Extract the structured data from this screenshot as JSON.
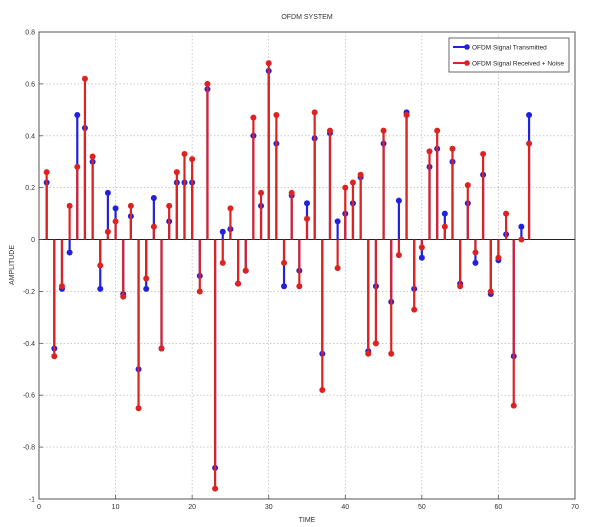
{
  "chart_data": {
    "type": "stem",
    "title": "OFDM SYSTEM",
    "xlabel": "TIME",
    "ylabel": "AMPLITUDE",
    "xlim": [
      0,
      70
    ],
    "ylim": [
      -1,
      0.8
    ],
    "xticks": [
      0,
      10,
      20,
      30,
      40,
      50,
      60,
      70
    ],
    "yticks": [
      -1,
      -0.8,
      -0.6,
      -0.4,
      -0.2,
      0,
      0.2,
      0.4,
      0.6,
      0.8
    ],
    "xtick_labels": [
      "0",
      "10",
      "20",
      "30",
      "40",
      "50",
      "60",
      "70"
    ],
    "ytick_labels": [
      "-1",
      "-0.8",
      "-0.6",
      "-0.4",
      "-0.2",
      "0",
      "0.2",
      "0.4",
      "0.6",
      "0.8"
    ],
    "grid": true,
    "legend_position": "top-right",
    "series": [
      {
        "name": "OFDM Signal Transmitted",
        "color": "#2222dd",
        "x": [
          1,
          2,
          3,
          4,
          5,
          6,
          7,
          8,
          9,
          10,
          11,
          12,
          13,
          14,
          15,
          16,
          17,
          18,
          19,
          20,
          21,
          22,
          23,
          24,
          25,
          26,
          27,
          28,
          29,
          30,
          31,
          32,
          33,
          34,
          35,
          36,
          37,
          38,
          39,
          40,
          41,
          42,
          43,
          44,
          45,
          46,
          47,
          48,
          49,
          50,
          51,
          52,
          53,
          54,
          55,
          56,
          57,
          58,
          59,
          60,
          61,
          62,
          63,
          64
        ],
        "y": [
          0.22,
          -0.42,
          -0.19,
          -0.05,
          0.48,
          0.43,
          0.3,
          -0.19,
          0.18,
          0.12,
          -0.21,
          0.09,
          -0.5,
          -0.19,
          0.16,
          -0.42,
          0.07,
          0.22,
          0.22,
          0.22,
          -0.14,
          0.58,
          -0.88,
          0.03,
          0.04,
          -0.17,
          -0.12,
          0.4,
          0.13,
          0.65,
          0.37,
          -0.18,
          0.17,
          -0.12,
          0.14,
          0.39,
          -0.44,
          0.41,
          0.07,
          0.1,
          0.14,
          0.24,
          -0.43,
          -0.18,
          0.37,
          -0.24,
          0.15,
          0.49,
          -0.19,
          -0.07,
          0.28,
          0.35,
          0.1,
          0.3,
          -0.17,
          0.14,
          -0.09,
          0.25,
          -0.21,
          -0.08,
          0.02,
          -0.45,
          0.05,
          0.48
        ]
      },
      {
        "name": "OFDM Signal Received + Noise",
        "color": "#dd2222",
        "x": [
          1,
          2,
          3,
          4,
          5,
          6,
          7,
          8,
          9,
          10,
          11,
          12,
          13,
          14,
          15,
          16,
          17,
          18,
          19,
          20,
          21,
          22,
          23,
          24,
          25,
          26,
          27,
          28,
          29,
          30,
          31,
          32,
          33,
          34,
          35,
          36,
          37,
          38,
          39,
          40,
          41,
          42,
          43,
          44,
          45,
          46,
          47,
          48,
          49,
          50,
          51,
          52,
          53,
          54,
          55,
          56,
          57,
          58,
          59,
          60,
          61,
          62,
          63,
          64
        ],
        "y": [
          0.26,
          -0.45,
          -0.18,
          0.13,
          0.28,
          0.62,
          0.32,
          -0.1,
          0.03,
          0.07,
          -0.22,
          0.13,
          -0.65,
          -0.15,
          0.05,
          -0.42,
          0.13,
          0.26,
          0.33,
          0.31,
          -0.2,
          0.6,
          -0.96,
          -0.09,
          0.12,
          -0.17,
          -0.12,
          0.47,
          0.18,
          0.68,
          0.48,
          -0.09,
          0.18,
          -0.18,
          0.08,
          0.49,
          -0.58,
          0.42,
          -0.11,
          0.2,
          0.22,
          0.25,
          -0.44,
          -0.4,
          0.42,
          -0.44,
          -0.06,
          0.48,
          -0.27,
          -0.03,
          0.34,
          0.42,
          0.05,
          0.35,
          -0.18,
          0.21,
          -0.05,
          0.33,
          -0.2,
          -0.07,
          0.1,
          -0.64,
          0.0,
          0.37
        ]
      }
    ]
  }
}
